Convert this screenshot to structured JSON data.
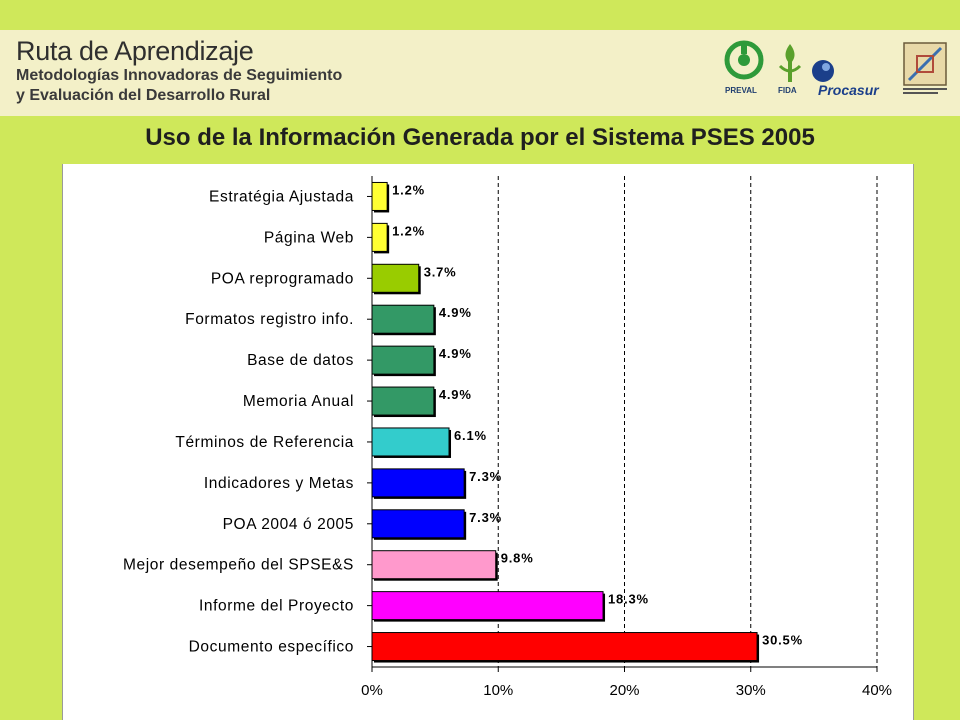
{
  "header": {
    "title": "Ruta de Aprendizaje",
    "subtitle_line1": "Metodologías Innovadoras de Seguimiento",
    "subtitle_line2": "y Evaluación del Desarrollo Rural",
    "logos": [
      {
        "name": "preval",
        "caption": "PREVAL"
      },
      {
        "name": "fida",
        "caption": "FIDA"
      },
      {
        "name": "procasur",
        "caption": "Procasur"
      },
      {
        "name": "corredor",
        "caption": ""
      }
    ]
  },
  "colors": {
    "background": "#cfe85a",
    "header_panel": "#f3f0c8"
  },
  "chart_data": {
    "type": "bar",
    "orientation": "horizontal",
    "title": "Uso de la Información Generada por el Sistema PSES 2005",
    "xlabel": "",
    "ylabel": "",
    "xlim": [
      0,
      40
    ],
    "xticks": [
      "0%",
      "10%",
      "20%",
      "30%",
      "40%"
    ],
    "grid": "vertical dashed",
    "categories": [
      "Estratégia Ajustada",
      "Página Web",
      "POA reprogramado",
      "Formatos registro info.",
      "Base de datos",
      "Memoria Anual",
      "Términos de Referencia",
      "Indicadores y Metas",
      "POA 2004 ó 2005",
      "Mejor desempeño del SPSE&S",
      "Informe del Proyecto",
      "Documento específico"
    ],
    "values": [
      1.2,
      1.2,
      3.7,
      4.9,
      4.9,
      4.9,
      6.1,
      7.3,
      7.3,
      9.8,
      18.3,
      30.5
    ],
    "value_labels": [
      "1.2%",
      "1.2%",
      "3.7%",
      "4.9%",
      "4.9%",
      "4.9%",
      "6.1%",
      "7.3%",
      "7.3%",
      "9.8%",
      "18.3%",
      "30.5%"
    ],
    "bar_colors": [
      "#ffff33",
      "#ffff33",
      "#99cc00",
      "#339966",
      "#339966",
      "#339966",
      "#33cccc",
      "#0000ff",
      "#0000ff",
      "#ff99cc",
      "#ff00ff",
      "#ff0000"
    ]
  }
}
